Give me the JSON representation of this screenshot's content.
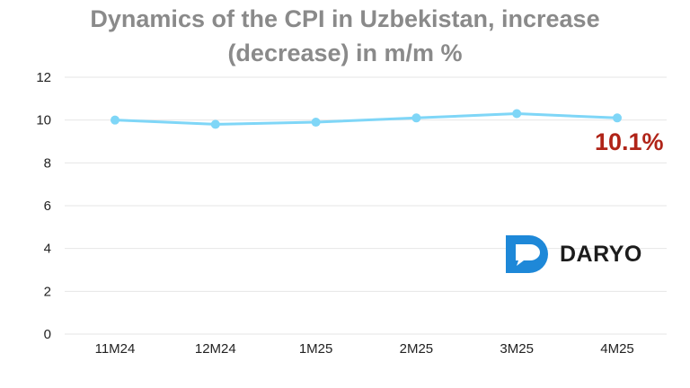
{
  "colors": {
    "title": "#8a8a8a",
    "line": "#7fd6f7",
    "marker": "#7fd6f7",
    "grid": "#e6e6e6",
    "callout": "#b02418",
    "logo_blue": "#1e88d8",
    "logo_text": "#1c1c1c"
  },
  "callout": {
    "text": "10.1%"
  },
  "logo": {
    "icon": "daryo-logo-icon",
    "text": "DARYO"
  },
  "chart_data": {
    "type": "line",
    "title": "Dynamics of the CPI in Uzbekistan, increase (decrease) in m/m %",
    "title_lines": [
      "Dynamics of the CPI in Uzbekistan, increase",
      "(decrease) in m/m %"
    ],
    "xlabel": "",
    "ylabel": "",
    "categories": [
      "11M24",
      "12M24",
      "1M25",
      "2M25",
      "3M25",
      "4M25"
    ],
    "series": [
      {
        "values": [
          10.0,
          9.8,
          9.9,
          10.1,
          10.3,
          10.1
        ]
      }
    ],
    "ylim": [
      0,
      12
    ],
    "yticks": [
      "0",
      "2",
      "4",
      "6",
      "8",
      "10",
      "12"
    ],
    "grid": true,
    "legend": "none"
  }
}
